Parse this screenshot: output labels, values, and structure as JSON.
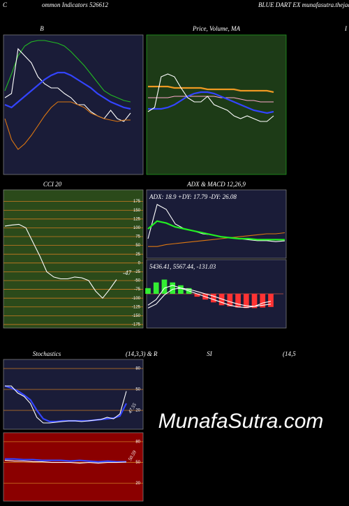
{
  "header": {
    "left": "C",
    "middle": "ommon  Indicators 526612",
    "right": "BLUE DART EX  munafasutra.thejacc",
    "edge": "I"
  },
  "watermark": "MunafaSutra.com",
  "chart_data": [
    {
      "type": "line",
      "title": "B",
      "background": "#1a1c38",
      "ylim": [
        0,
        100
      ],
      "series": [
        {
          "color": "#22bb22",
          "values": [
            60,
            72,
            85,
            92,
            95,
            96,
            96,
            95,
            94,
            92,
            88,
            83,
            78,
            72,
            66,
            60,
            57,
            55,
            53,
            52
          ]
        },
        {
          "color": "#ffffff",
          "values": [
            55,
            58,
            90,
            85,
            80,
            70,
            65,
            62,
            62,
            58,
            55,
            50,
            50,
            45,
            42,
            40,
            46,
            40,
            38,
            44
          ]
        },
        {
          "color": "#3344ff",
          "values": [
            50,
            48,
            52,
            56,
            60,
            64,
            68,
            71,
            73,
            73,
            71,
            68,
            65,
            62,
            58,
            55,
            52,
            50,
            48,
            47
          ]
        },
        {
          "color": "#dd7711",
          "values": [
            40,
            25,
            18,
            22,
            28,
            35,
            42,
            48,
            52,
            52,
            52,
            50,
            48,
            44,
            42,
            40,
            39,
            38,
            39,
            39
          ]
        }
      ]
    },
    {
      "type": "line",
      "title": "Price, Volume, MA",
      "background": "#1d3b17",
      "ylim": [
        0,
        100
      ],
      "series": [
        {
          "color": "#ee9922",
          "values": [
            63,
            63,
            63,
            63,
            62,
            62,
            62,
            62,
            62,
            61,
            61,
            61,
            61,
            61,
            60,
            60,
            60,
            60,
            60,
            59
          ]
        },
        {
          "color": "#ffaacc",
          "values": [
            55,
            55,
            55,
            55,
            56,
            56,
            56,
            56,
            56,
            56,
            56,
            55,
            55,
            55,
            54,
            53,
            53,
            52,
            52,
            52
          ]
        },
        {
          "color": "#3344ff",
          "values": [
            47,
            47,
            47,
            48,
            50,
            53,
            56,
            58,
            59,
            59,
            58,
            56,
            54,
            52,
            50,
            48,
            46,
            45,
            44,
            45
          ]
        },
        {
          "color": "#ffffff",
          "values": [
            45,
            48,
            70,
            72,
            70,
            62,
            55,
            52,
            52,
            56,
            50,
            48,
            46,
            42,
            40,
            42,
            40,
            38,
            38,
            42
          ]
        }
      ]
    },
    {
      "type": "line",
      "title": "CCI 20",
      "background": "#2b4a1a",
      "grid_color": "#cc7a22",
      "ylim": [
        -185,
        208
      ],
      "yticks": [
        175,
        150,
        125,
        100,
        75,
        50,
        25,
        0,
        -25,
        -50,
        -75,
        -100,
        -125,
        -150,
        -175
      ],
      "series": [
        {
          "color": "#ffffff",
          "values": [
            105,
            108,
            110,
            100,
            60,
            20,
            -25,
            -40,
            -45,
            -45,
            -40,
            -42,
            -50,
            -80,
            -100,
            -75,
            -47
          ]
        }
      ]
    },
    {
      "type": "line",
      "title": "ADX  & MACD 12,26,9",
      "annotation": "ADX: 18.9 +DY: 17.79 -DY: 26.08",
      "background": "#1a1c38",
      "ylim": [
        0,
        70
      ],
      "series": [
        {
          "color": "#dd7711",
          "values": [
            12,
            12,
            14,
            15,
            16,
            17,
            18,
            19,
            20,
            21,
            22,
            23,
            24,
            25,
            25,
            26.08
          ]
        },
        {
          "color": "#ffffff",
          "values": [
            20,
            55,
            50,
            35,
            30,
            28,
            25,
            24,
            22,
            21,
            20,
            19,
            18,
            18,
            17,
            17.79
          ]
        },
        {
          "color": "#22ee22",
          "values": [
            30,
            38,
            36,
            32,
            30,
            28,
            26,
            24,
            22,
            21,
            20,
            20,
            19,
            19,
            19,
            18.9
          ]
        }
      ]
    },
    {
      "type": "macd",
      "annotation": "5436.41, 5567.44, -131.03",
      "background": "#1a1c38",
      "ylim": [
        -600,
        600
      ],
      "positive_color": "#33ee33",
      "negative_color": "#ff3333",
      "histogram": [
        100,
        200,
        250,
        200,
        150,
        100,
        -50,
        -100,
        -150,
        -200,
        -220,
        -240,
        -250,
        -250,
        -240,
        -230
      ],
      "series": [
        {
          "color": "#ffffff",
          "values": [
            -200,
            -100,
            100,
            150,
            100,
            50,
            0,
            -50,
            -100,
            -150,
            -200,
            -230,
            -240,
            -220,
            -160,
            -131.03
          ]
        },
        {
          "color": "#ffffff",
          "values": [
            -250,
            -180,
            -20,
            80,
            100,
            80,
            40,
            0,
            -40,
            -90,
            -140,
            -180,
            -210,
            -220,
            -200,
            -180
          ]
        }
      ]
    },
    {
      "type": "line",
      "title": "Stochastics",
      "subtitle": "(14,3,3) & R",
      "background": "#1a1c38",
      "grid_color": "#cc7a22",
      "ylim": [
        -7,
        93
      ],
      "yticks": [
        80,
        50,
        20
      ],
      "series": [
        {
          "color": "#3344ff",
          "values": [
            55,
            52,
            48,
            42,
            35,
            20,
            8,
            4,
            4,
            5,
            5,
            5,
            5,
            5,
            6,
            7,
            8,
            9,
            12,
            30
          ]
        },
        {
          "color": "#ffffff",
          "values": [
            55,
            55,
            45,
            40,
            30,
            10,
            2,
            2,
            3,
            4,
            5,
            5,
            4,
            5,
            6,
            7,
            10,
            8,
            15,
            47.55
          ]
        }
      ]
    },
    {
      "type": "line",
      "title": "SI",
      "subtitle": "(14,5",
      "background": "#8b0000",
      "grid_color": "#cc7a22",
      "ylim": [
        -6,
        93
      ],
      "yticks": [
        80,
        50,
        20
      ],
      "series": [
        {
          "color": "#3344ff",
          "values": [
            55,
            55,
            54,
            54,
            53,
            53,
            53,
            52,
            53,
            52,
            51,
            52,
            51,
            51
          ]
        },
        {
          "color": "#ffffff",
          "values": [
            53,
            52,
            52,
            51,
            51,
            50,
            50,
            50,
            49,
            50,
            49,
            50,
            50,
            50.59
          ]
        }
      ]
    }
  ]
}
